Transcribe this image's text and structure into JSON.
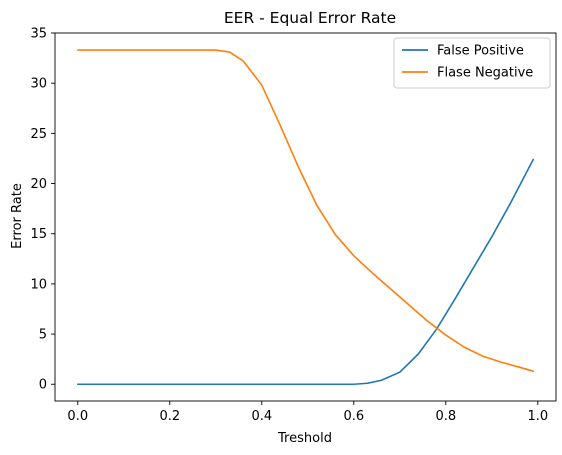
{
  "chart_data": {
    "type": "line",
    "title": "EER - Equal Error Rate",
    "xlabel": "Treshold",
    "ylabel": "Error Rate",
    "xlim": [
      -0.0495,
      1.0395
    ],
    "ylim": [
      -1.67,
      35
    ],
    "xticks": [
      "0.0",
      "0.2",
      "0.4",
      "0.6",
      "0.8",
      "1.0"
    ],
    "xtick_values": [
      0.0,
      0.2,
      0.4,
      0.6,
      0.8,
      1.0
    ],
    "yticks": [
      "0",
      "5",
      "10",
      "15",
      "20",
      "25",
      "30",
      "35"
    ],
    "ytick_values": [
      0,
      5,
      10,
      15,
      20,
      25,
      30,
      35
    ],
    "grid": false,
    "legend_position": "top-right",
    "series": [
      {
        "name": "False Positive",
        "color": "#1f77b4",
        "points": [
          [
            0.0,
            0.0
          ],
          [
            0.1,
            0.0
          ],
          [
            0.2,
            0.0
          ],
          [
            0.3,
            0.0
          ],
          [
            0.4,
            0.0
          ],
          [
            0.5,
            0.0
          ],
          [
            0.6,
            0.0
          ],
          [
            0.63,
            0.1
          ],
          [
            0.66,
            0.4
          ],
          [
            0.7,
            1.2
          ],
          [
            0.74,
            3.0
          ],
          [
            0.78,
            5.5
          ],
          [
            0.82,
            8.5
          ],
          [
            0.86,
            11.6
          ],
          [
            0.9,
            14.7
          ],
          [
            0.94,
            18.0
          ],
          [
            0.99,
            22.4
          ]
        ]
      },
      {
        "name": "Flase Negative",
        "color": "#ff7f0e",
        "points": [
          [
            0.0,
            33.3
          ],
          [
            0.1,
            33.3
          ],
          [
            0.2,
            33.3
          ],
          [
            0.3,
            33.3
          ],
          [
            0.33,
            33.1
          ],
          [
            0.36,
            32.2
          ],
          [
            0.4,
            29.8
          ],
          [
            0.44,
            25.8
          ],
          [
            0.48,
            21.6
          ],
          [
            0.52,
            17.8
          ],
          [
            0.56,
            14.9
          ],
          [
            0.6,
            12.8
          ],
          [
            0.64,
            11.1
          ],
          [
            0.68,
            9.5
          ],
          [
            0.72,
            7.9
          ],
          [
            0.76,
            6.3
          ],
          [
            0.8,
            4.9
          ],
          [
            0.84,
            3.7
          ],
          [
            0.88,
            2.8
          ],
          [
            0.92,
            2.2
          ],
          [
            0.96,
            1.7
          ],
          [
            0.99,
            1.3
          ]
        ]
      }
    ]
  }
}
